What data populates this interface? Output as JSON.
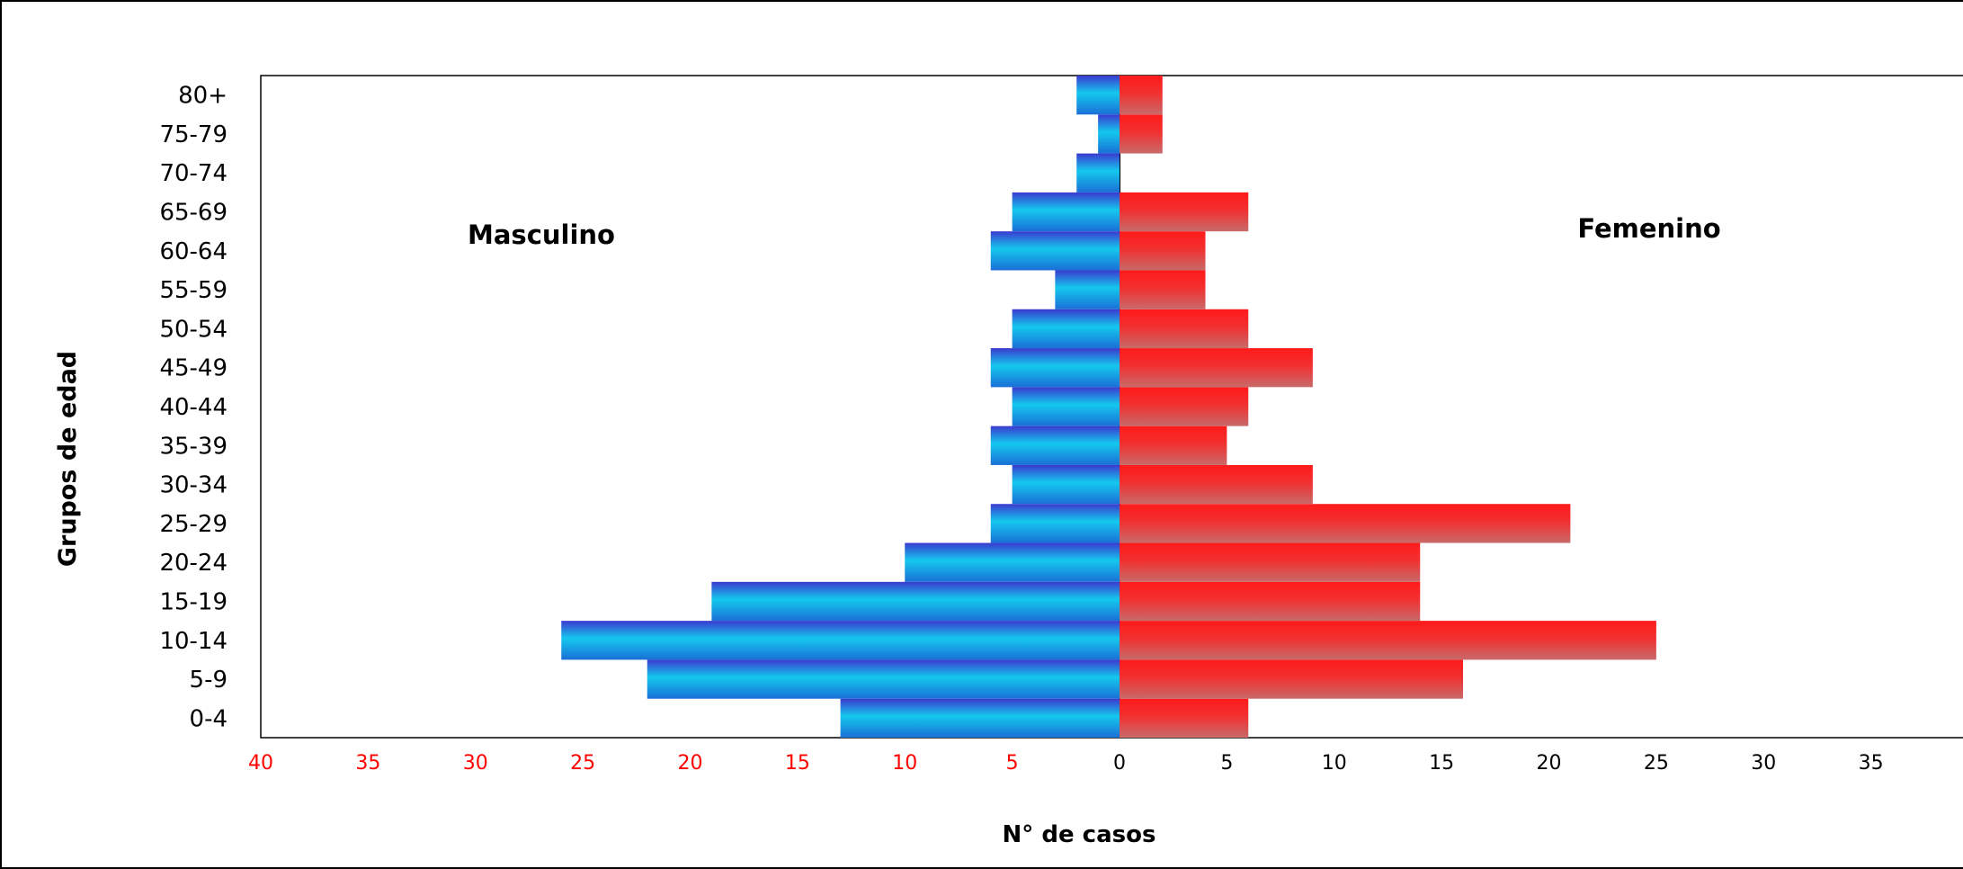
{
  "chart_data": {
    "type": "bar",
    "orientation": "horizontal",
    "subtype": "population-pyramid",
    "ylabel": "Grupos de edad",
    "xlabel": "N° de casos",
    "xlim": [
      -40,
      40
    ],
    "categories": [
      "0-4",
      "5-9",
      "10-14",
      "15-19",
      "20-24",
      "25-29",
      "30-34",
      "35-39",
      "40-44",
      "45-49",
      "50-54",
      "55-59",
      "60-64",
      "65-69",
      "70-74",
      "75-79",
      "80+"
    ],
    "x_ticks": [
      {
        "value": -40,
        "label": "40"
      },
      {
        "value": -35,
        "label": "35"
      },
      {
        "value": -30,
        "label": "30"
      },
      {
        "value": -25,
        "label": "25"
      },
      {
        "value": -20,
        "label": "20"
      },
      {
        "value": -15,
        "label": "15"
      },
      {
        "value": -10,
        "label": "10"
      },
      {
        "value": -5,
        "label": "5"
      },
      {
        "value": 0,
        "label": "0"
      },
      {
        "value": 5,
        "label": "5"
      },
      {
        "value": 10,
        "label": "10"
      },
      {
        "value": 15,
        "label": "15"
      },
      {
        "value": 20,
        "label": "20"
      },
      {
        "value": 25,
        "label": "25"
      },
      {
        "value": 30,
        "label": "30"
      },
      {
        "value": 35,
        "label": "35"
      },
      {
        "value": 40,
        "label": "40"
      }
    ],
    "series": [
      {
        "name": "Masculino",
        "side": "left",
        "color": "#1aa8e6",
        "edge_color": "#3a3acf",
        "values": [
          13,
          22,
          26,
          19,
          10,
          6,
          5,
          6,
          5,
          6,
          5,
          3,
          6,
          5,
          2,
          1,
          2
        ]
      },
      {
        "name": "Femenino",
        "side": "right",
        "color": "#ff1a1a",
        "edge_color": "#c96464",
        "values": [
          6,
          16,
          25,
          14,
          14,
          21,
          9,
          5,
          6,
          9,
          6,
          4,
          4,
          6,
          0,
          2,
          2
        ]
      }
    ],
    "negative_tick_color": "#ff0000",
    "grid": false
  }
}
